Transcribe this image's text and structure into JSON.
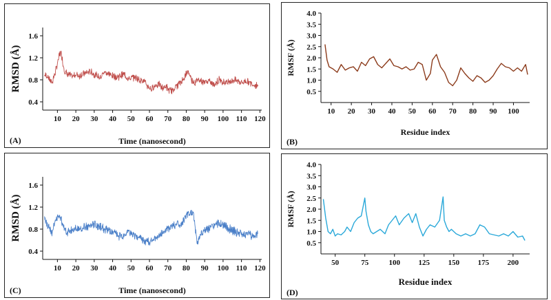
{
  "chart_data": [
    {
      "type": "line",
      "panel_label": "(A)",
      "xlabel": "Time (nanosecond)",
      "ylabel": "RMSD (Å)",
      "xlim": [
        2,
        121
      ],
      "ylim": [
        0.25,
        1.75
      ],
      "xticks": [
        10,
        20,
        30,
        40,
        50,
        60,
        70,
        80,
        90,
        100,
        110,
        120
      ],
      "yticks": [
        0.4,
        0.8,
        1.2,
        1.6
      ],
      "color": "#c0504d",
      "grid": false,
      "series": [
        {
          "x": [
            3,
            5,
            7,
            9,
            10,
            11,
            12,
            13,
            14,
            16,
            18,
            20,
            22,
            25,
            28,
            30,
            33,
            36,
            38,
            40,
            43,
            46,
            49,
            52,
            55,
            57,
            59,
            61,
            63,
            65,
            67,
            69,
            71,
            73,
            75,
            77,
            79,
            81,
            83,
            85,
            87,
            89,
            92,
            95,
            98,
            101,
            104,
            107,
            110,
            113,
            116,
            119
          ],
          "values": [
            0.9,
            0.85,
            0.75,
            0.95,
            1.1,
            1.25,
            1.3,
            1.1,
            0.95,
            0.9,
            0.85,
            0.9,
            0.88,
            0.92,
            0.95,
            0.9,
            0.85,
            0.95,
            0.9,
            0.88,
            0.85,
            0.9,
            0.82,
            0.85,
            0.8,
            0.78,
            0.68,
            0.62,
            0.7,
            0.72,
            0.65,
            0.68,
            0.6,
            0.62,
            0.7,
            0.75,
            0.85,
            0.95,
            0.8,
            0.75,
            0.82,
            0.75,
            0.78,
            0.72,
            0.8,
            0.75,
            0.78,
            0.8,
            0.75,
            0.78,
            0.72,
            0.7
          ]
        }
      ]
    },
    {
      "type": "line",
      "panel_label": "(B)",
      "xlabel": "Residue index",
      "ylabel": "RMSF (Å)",
      "xlim": [
        5,
        108
      ],
      "ylim": [
        0,
        4.0
      ],
      "xticks": [
        10,
        20,
        30,
        40,
        50,
        60,
        70,
        80,
        90,
        100
      ],
      "yticks": [
        0.5,
        1.0,
        1.5,
        2.0,
        2.5,
        3.0,
        3.5,
        4.0
      ],
      "color": "#8b3a1a",
      "grid": false,
      "series": [
        {
          "x": [
            7,
            8,
            9,
            11,
            13,
            15,
            17,
            19,
            21,
            23,
            25,
            27,
            29,
            31,
            33,
            35,
            37,
            39,
            41,
            43,
            45,
            47,
            49,
            51,
            53,
            55,
            57,
            59,
            60,
            62,
            64,
            66,
            68,
            70,
            72,
            74,
            76,
            78,
            80,
            82,
            84,
            86,
            88,
            90,
            92,
            94,
            96,
            98,
            100,
            102,
            104,
            106,
            107
          ],
          "values": [
            2.6,
            1.9,
            1.6,
            1.5,
            1.35,
            1.7,
            1.45,
            1.55,
            1.6,
            1.4,
            1.8,
            1.65,
            1.95,
            2.05,
            1.7,
            1.55,
            1.75,
            1.95,
            1.65,
            1.6,
            1.5,
            1.6,
            1.45,
            1.5,
            1.8,
            1.7,
            1.0,
            1.3,
            1.9,
            2.15,
            1.6,
            1.35,
            0.9,
            0.75,
            1.0,
            1.55,
            1.3,
            1.1,
            0.95,
            1.2,
            1.1,
            0.9,
            1.0,
            1.2,
            1.5,
            1.75,
            1.6,
            1.55,
            1.4,
            1.55,
            1.4,
            1.7,
            1.25
          ]
        }
      ]
    },
    {
      "type": "line",
      "panel_label": "(C)",
      "xlabel": "Time (nanosecond)",
      "ylabel": "RMSD (Å)",
      "xlim": [
        2,
        121
      ],
      "ylim": [
        0.25,
        1.75
      ],
      "xticks": [
        10,
        20,
        30,
        40,
        50,
        60,
        70,
        80,
        90,
        100,
        110,
        120
      ],
      "yticks": [
        0.4,
        0.8,
        1.2,
        1.6
      ],
      "color": "#4a7fc8",
      "grid": false,
      "series": [
        {
          "x": [
            3,
            5,
            7,
            9,
            11,
            13,
            15,
            18,
            21,
            24,
            27,
            30,
            33,
            36,
            39,
            42,
            45,
            48,
            51,
            54,
            57,
            60,
            63,
            66,
            69,
            72,
            75,
            77,
            79,
            81,
            83,
            84,
            85,
            86,
            87,
            89,
            92,
            95,
            98,
            101,
            104,
            107,
            110,
            113,
            116,
            119
          ],
          "values": [
            1.0,
            0.85,
            0.75,
            0.95,
            1.05,
            0.9,
            0.75,
            0.78,
            0.8,
            0.82,
            0.85,
            0.88,
            0.85,
            0.8,
            0.75,
            0.7,
            0.65,
            0.75,
            0.7,
            0.65,
            0.6,
            0.55,
            0.62,
            0.7,
            0.78,
            0.85,
            0.9,
            0.85,
            1.0,
            1.05,
            1.1,
            1.05,
            0.8,
            0.55,
            0.65,
            0.75,
            0.8,
            0.85,
            0.9,
            0.85,
            0.8,
            0.75,
            0.7,
            0.72,
            0.68,
            0.72
          ]
        }
      ]
    },
    {
      "type": "line",
      "panel_label": "(D)",
      "xlabel": "Residue index",
      "ylabel": "RMSF (Å)",
      "xlim": [
        38,
        214
      ],
      "ylim": [
        0,
        4.0
      ],
      "xticks": [
        50,
        75,
        100,
        125,
        150,
        175,
        200
      ],
      "yticks": [
        0.5,
        1.0,
        1.5,
        2.0,
        2.5,
        3.0,
        3.5,
        4.0
      ],
      "color": "#29a8d9",
      "grid": false,
      "series": [
        {
          "x": [
            40,
            42,
            44,
            46,
            48,
            50,
            52,
            55,
            58,
            60,
            63,
            66,
            69,
            72,
            75,
            76,
            78,
            80,
            82,
            85,
            88,
            92,
            95,
            98,
            101,
            104,
            108,
            112,
            115,
            118,
            121,
            124,
            127,
            130,
            134,
            138,
            141,
            142,
            144,
            146,
            148,
            152,
            156,
            160,
            164,
            168,
            172,
            176,
            180,
            184,
            188,
            192,
            196,
            200,
            204,
            208,
            210
          ],
          "values": [
            2.45,
            1.6,
            1.0,
            0.9,
            1.1,
            0.8,
            0.9,
            0.85,
            1.0,
            1.2,
            1.0,
            1.4,
            1.6,
            1.7,
            2.5,
            1.9,
            1.3,
            1.0,
            0.9,
            1.0,
            1.1,
            0.9,
            1.3,
            1.5,
            1.7,
            1.3,
            1.6,
            1.8,
            1.4,
            1.8,
            1.2,
            0.8,
            1.1,
            1.3,
            1.2,
            1.5,
            2.55,
            1.5,
            1.2,
            1.0,
            1.1,
            0.9,
            0.8,
            0.9,
            0.8,
            0.9,
            1.3,
            1.2,
            0.9,
            0.85,
            0.8,
            0.9,
            0.8,
            1.0,
            0.75,
            0.8,
            0.6
          ]
        }
      ]
    }
  ]
}
